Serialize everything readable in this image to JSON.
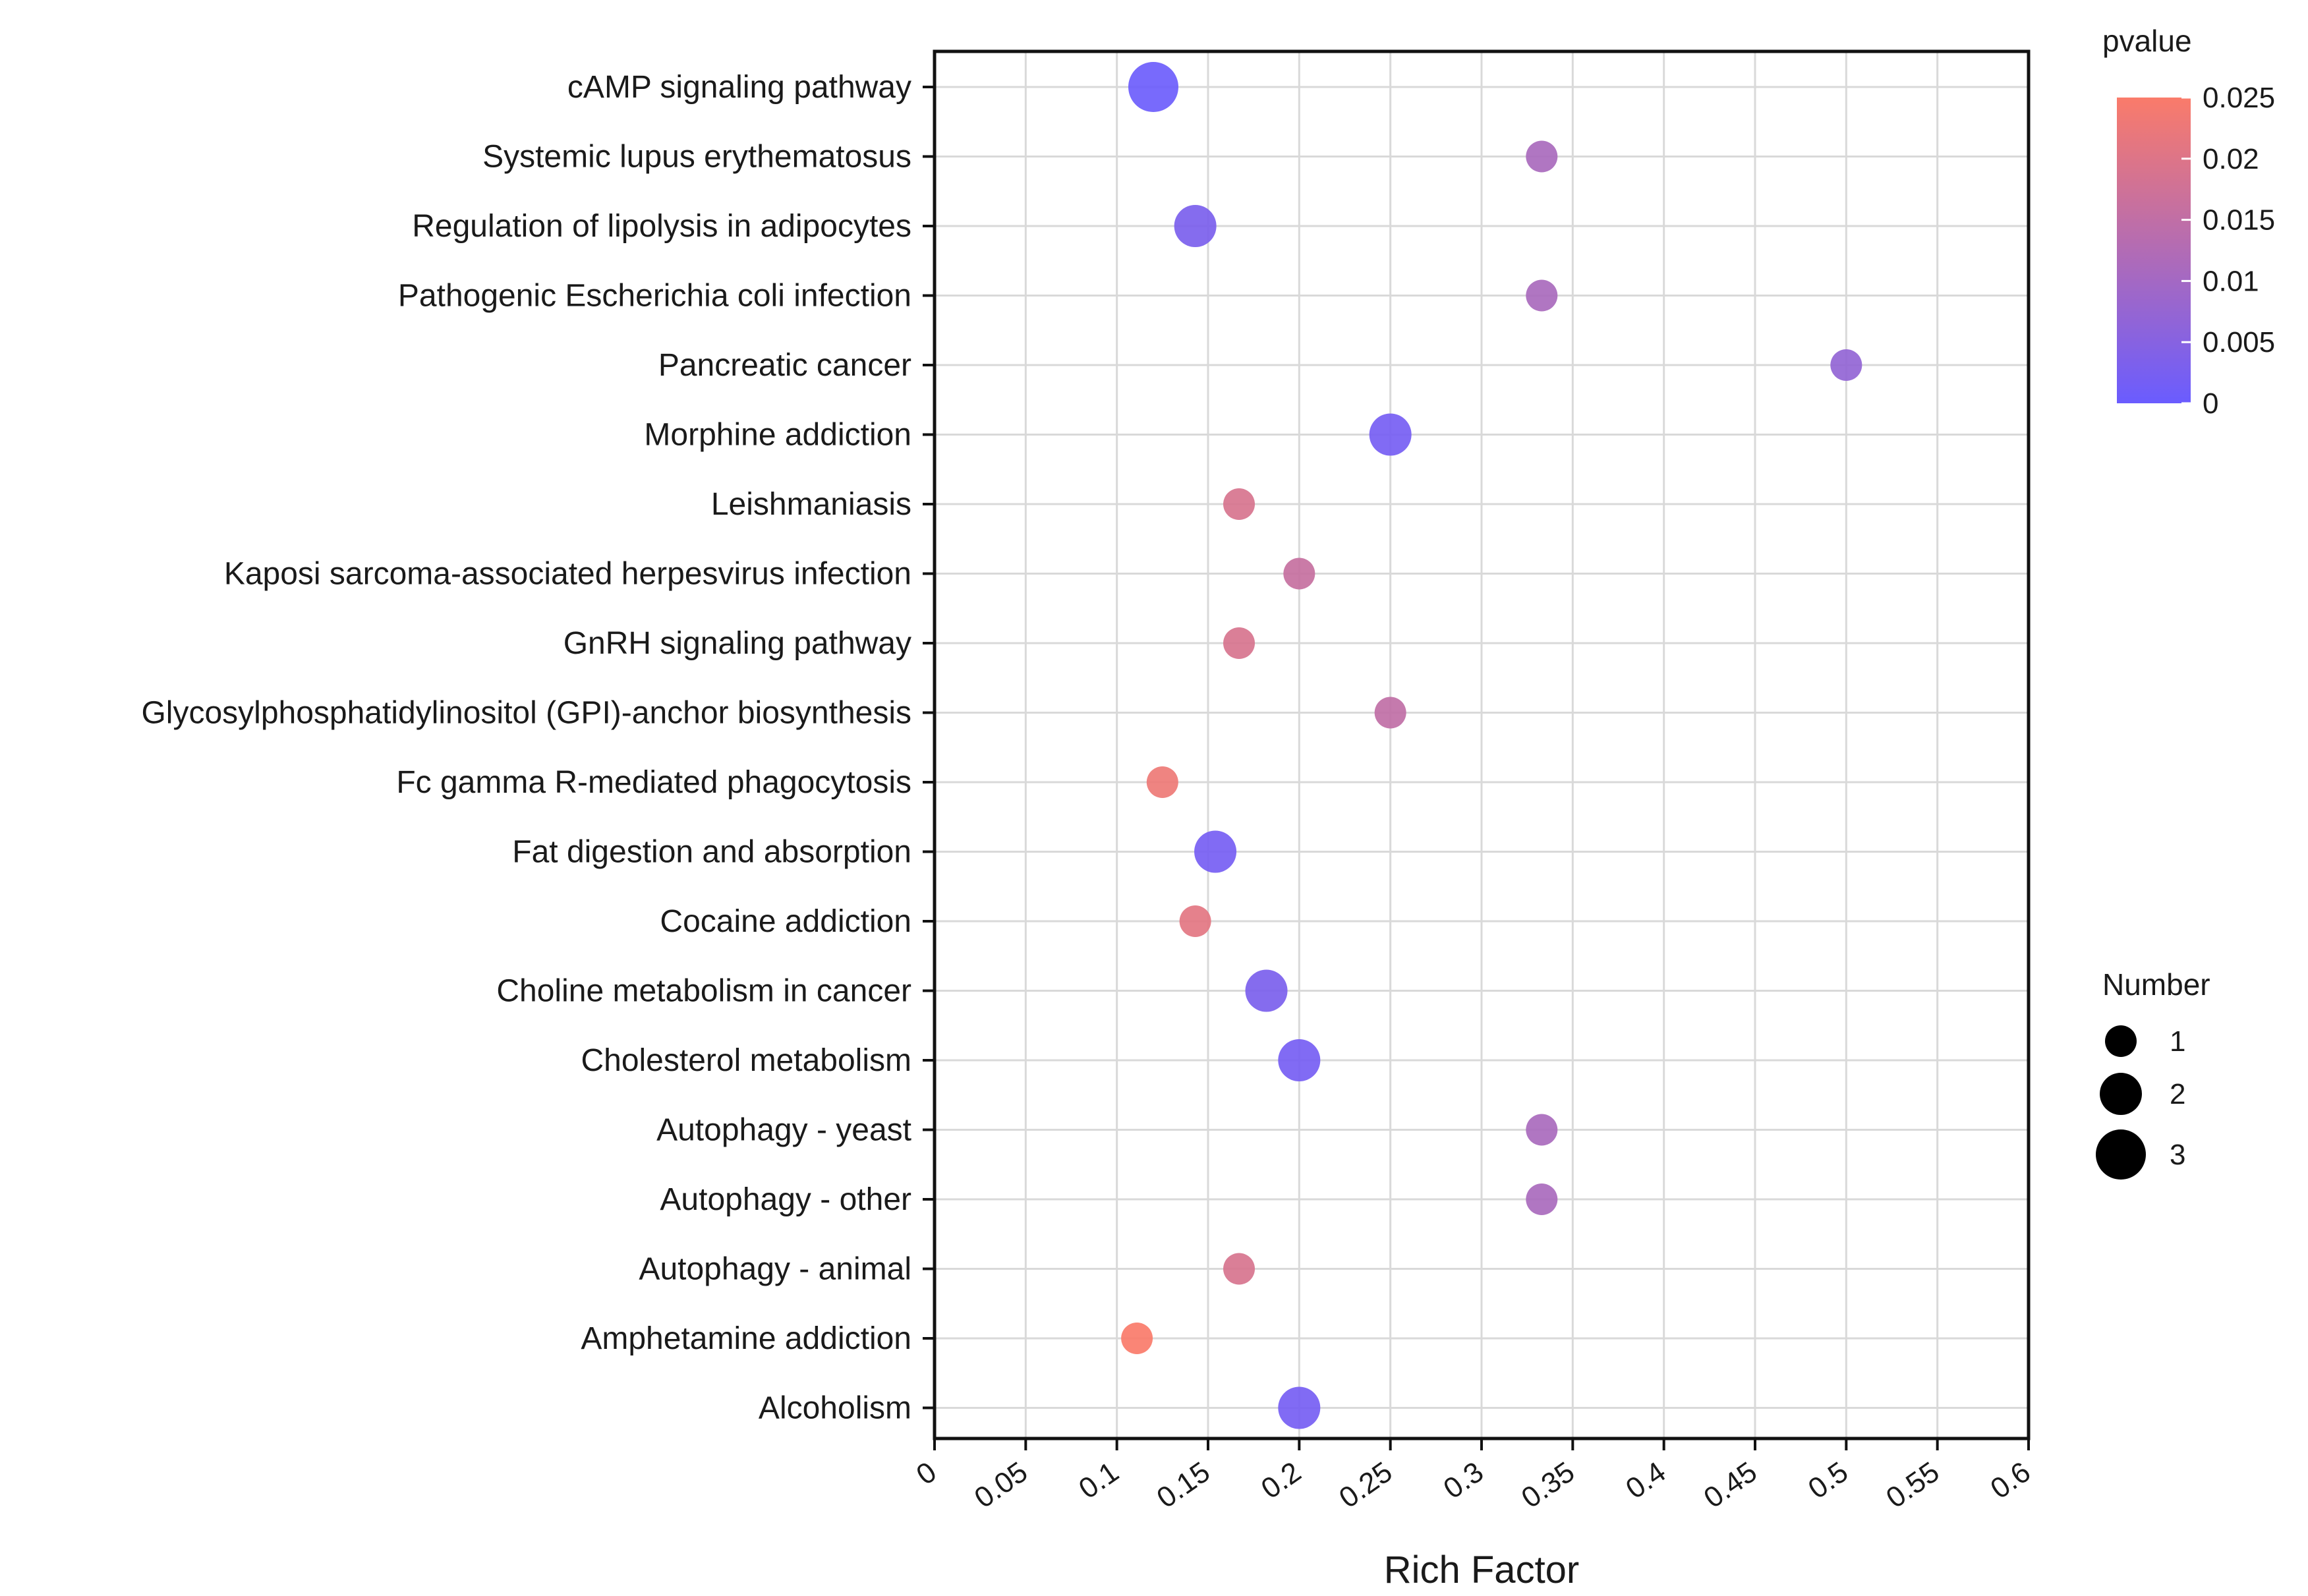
{
  "chart_data": {
    "type": "scatter",
    "subtype": "bubble",
    "xlabel": "Rich Factor",
    "ylabel": "",
    "xlim": [
      0,
      0.6
    ],
    "x_ticks": [
      "0",
      "0.05",
      "0.1",
      "0.15",
      "0.2",
      "0.25",
      "0.3",
      "0.35",
      "0.4",
      "0.45",
      "0.5",
      "0.55",
      "0.6"
    ],
    "grid": true,
    "categories": [
      "cAMP signaling pathway",
      "Systemic lupus erythematosus",
      "Regulation of lipolysis in adipocytes",
      "Pathogenic Escherichia coli infection",
      "Pancreatic cancer",
      "Morphine addiction",
      "Leishmaniasis",
      "Kaposi sarcoma-associated herpesvirus infection",
      "GnRH signaling pathway",
      "Glycosylphosphatidylinositol (GPI)-anchor biosynthesis",
      "Fc gamma R-mediated phagocytosis",
      "Fat digestion and absorption",
      "Cocaine addiction",
      "Choline metabolism in cancer",
      "Cholesterol metabolism",
      "Autophagy - yeast",
      "Autophagy - other",
      "Autophagy - animal",
      "Amphetamine addiction",
      "Alcoholism"
    ],
    "points": [
      {
        "term": "cAMP signaling pathway",
        "rich_factor": 0.12,
        "pvalue": 0.0005,
        "number": 3
      },
      {
        "term": "Systemic lupus erythematosus",
        "rich_factor": 0.333,
        "pvalue": 0.011,
        "number": 1
      },
      {
        "term": "Regulation of lipolysis in adipocytes",
        "rich_factor": 0.143,
        "pvalue": 0.003,
        "number": 2
      },
      {
        "term": "Pathogenic Escherichia coli infection",
        "rich_factor": 0.333,
        "pvalue": 0.011,
        "number": 1
      },
      {
        "term": "Pancreatic cancer",
        "rich_factor": 0.5,
        "pvalue": 0.007,
        "number": 1
      },
      {
        "term": "Morphine addiction",
        "rich_factor": 0.25,
        "pvalue": 0.002,
        "number": 2
      },
      {
        "term": "Leishmaniasis",
        "rich_factor": 0.167,
        "pvalue": 0.019,
        "number": 1
      },
      {
        "term": "Kaposi sarcoma-associated herpesvirus infection",
        "rich_factor": 0.2,
        "pvalue": 0.016,
        "number": 1
      },
      {
        "term": "GnRH signaling pathway",
        "rich_factor": 0.167,
        "pvalue": 0.019,
        "number": 1
      },
      {
        "term": "Glycosylphosphatidylinositol (GPI)-anchor biosynthesis",
        "rich_factor": 0.25,
        "pvalue": 0.015,
        "number": 1
      },
      {
        "term": "Fc gamma R-mediated phagocytosis",
        "rich_factor": 0.125,
        "pvalue": 0.023,
        "number": 1
      },
      {
        "term": "Fat digestion and absorption",
        "rich_factor": 0.154,
        "pvalue": 0.002,
        "number": 2
      },
      {
        "term": "Cocaine addiction",
        "rich_factor": 0.143,
        "pvalue": 0.021,
        "number": 1
      },
      {
        "term": "Choline metabolism in cancer",
        "rich_factor": 0.182,
        "pvalue": 0.003,
        "number": 2
      },
      {
        "term": "Cholesterol metabolism",
        "rich_factor": 0.2,
        "pvalue": 0.002,
        "number": 2
      },
      {
        "term": "Autophagy - yeast",
        "rich_factor": 0.333,
        "pvalue": 0.011,
        "number": 1
      },
      {
        "term": "Autophagy - other",
        "rich_factor": 0.333,
        "pvalue": 0.011,
        "number": 1
      },
      {
        "term": "Autophagy - animal",
        "rich_factor": 0.167,
        "pvalue": 0.019,
        "number": 1
      },
      {
        "term": "Amphetamine addiction",
        "rich_factor": 0.111,
        "pvalue": 0.025,
        "number": 1
      },
      {
        "term": "Alcoholism",
        "rich_factor": 0.2,
        "pvalue": 0.002,
        "number": 2
      }
    ],
    "color_legend": {
      "title": "pvalue",
      "min": 0,
      "max": 0.025,
      "ticks": [
        "0",
        "0.005",
        "0.01",
        "0.015",
        "0.02",
        "0.025"
      ],
      "low_color": "#6a5cff",
      "high_color": "#fa7b6a"
    },
    "size_legend": {
      "title": "Number",
      "entries": [
        {
          "label": "1",
          "value": 1
        },
        {
          "label": "2",
          "value": 2
        },
        {
          "label": "3",
          "value": 3
        }
      ],
      "color": "#000000"
    }
  }
}
